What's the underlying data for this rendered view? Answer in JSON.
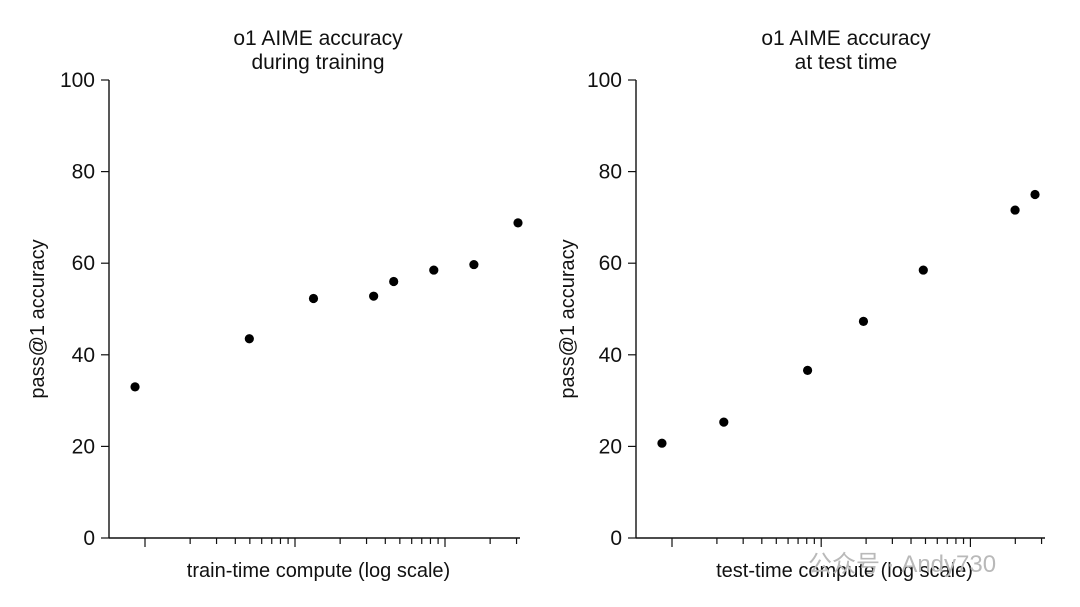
{
  "chart_data": [
    {
      "type": "scatter",
      "title": [
        "o1 AIME accuracy",
        "during training"
      ],
      "xlabel": "train-time compute (log scale)",
      "ylabel": "pass@1 accuracy",
      "xscale": "log",
      "ylim": [
        0,
        100
      ],
      "yticks": [
        0,
        20,
        40,
        60,
        80,
        100
      ],
      "grid": false,
      "legend": "none",
      "color": "#000000",
      "points": [
        {
          "x": 0.045,
          "y": 33
        },
        {
          "x": 0.33,
          "y": 43.5
        },
        {
          "x": 0.49,
          "y": 52.3
        },
        {
          "x": 0.64,
          "y": 52.8
        },
        {
          "x": 0.69,
          "y": 56
        },
        {
          "x": 0.79,
          "y": 58.5
        },
        {
          "x": 0.89,
          "y": 59.7
        },
        {
          "x": 1.0,
          "y": 68.8
        }
      ]
    },
    {
      "type": "scatter",
      "title": [
        "o1 AIME accuracy",
        "at test time"
      ],
      "xlabel": "test-time compute (log scale)",
      "ylabel": "pass@1 accuracy",
      "xscale": "log",
      "ylim": [
        0,
        100
      ],
      "yticks": [
        0,
        20,
        40,
        60,
        80,
        100
      ],
      "grid": false,
      "legend": "none",
      "color": "#000000",
      "points": [
        {
          "x": 0.045,
          "y": 20.7
        },
        {
          "x": 0.2,
          "y": 25.3
        },
        {
          "x": 0.41,
          "y": 36.6
        },
        {
          "x": 0.55,
          "y": 47.3
        },
        {
          "x": 0.7,
          "y": 58.5
        },
        {
          "x": 0.93,
          "y": 71.6
        },
        {
          "x": 0.98,
          "y": 75
        }
      ]
    }
  ],
  "watermark": "公众号 · Andy730"
}
